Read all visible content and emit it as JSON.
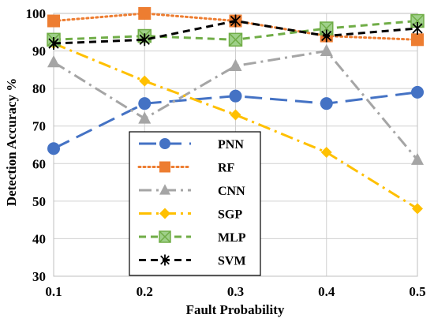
{
  "chart_data": {
    "type": "line",
    "xlabel": "Fault Probability",
    "ylabel": "Detection Accuracy %",
    "x": [
      "0.1",
      "0.2",
      "0.3",
      "0.4",
      "0.5"
    ],
    "ylim": [
      30,
      100
    ],
    "yticks": [
      "30",
      "40",
      "50",
      "60",
      "70",
      "80",
      "90",
      "100"
    ],
    "grid": true,
    "legend_position": "center-left",
    "series": [
      {
        "name": "PNN",
        "values": [
          64,
          76,
          78,
          76,
          79
        ],
        "color": "#4472C4",
        "dash": "long-dash",
        "marker": "circle"
      },
      {
        "name": "RF",
        "values": [
          98,
          100,
          98,
          94,
          93
        ],
        "color": "#ED7D31",
        "dash": "dot",
        "marker": "square"
      },
      {
        "name": "CNN",
        "values": [
          87,
          72,
          86,
          90,
          61
        ],
        "color": "#A5A5A5",
        "dash": "dash-dot",
        "marker": "triangle"
      },
      {
        "name": "SGP",
        "values": [
          92,
          82,
          73,
          63,
          48
        ],
        "color": "#FFC000",
        "dash": "dash-dot",
        "marker": "diamond"
      },
      {
        "name": "MLP",
        "values": [
          93,
          94,
          93,
          96,
          98
        ],
        "color": "#70AD47",
        "dash": "dash",
        "marker": "square-x"
      },
      {
        "name": "SVM",
        "values": [
          92,
          93,
          98,
          94,
          96
        ],
        "color": "#000000",
        "dash": "dash",
        "marker": "star"
      }
    ]
  }
}
